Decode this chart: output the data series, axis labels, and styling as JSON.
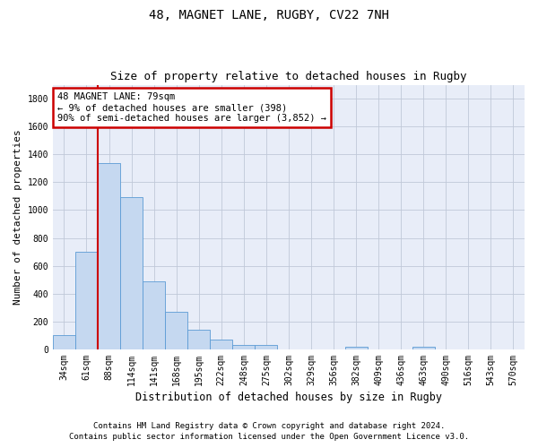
{
  "title": "48, MAGNET LANE, RUGBY, CV22 7NH",
  "subtitle": "Size of property relative to detached houses in Rugby",
  "xlabel": "Distribution of detached houses by size in Rugby",
  "ylabel": "Number of detached properties",
  "categories": [
    "34sqm",
    "61sqm",
    "88sqm",
    "114sqm",
    "141sqm",
    "168sqm",
    "195sqm",
    "222sqm",
    "248sqm",
    "275sqm",
    "302sqm",
    "329sqm",
    "356sqm",
    "382sqm",
    "409sqm",
    "436sqm",
    "463sqm",
    "490sqm",
    "516sqm",
    "543sqm",
    "570sqm"
  ],
  "values": [
    100,
    700,
    1340,
    1095,
    490,
    270,
    140,
    70,
    35,
    35,
    0,
    0,
    0,
    20,
    0,
    0,
    20,
    0,
    0,
    0,
    0
  ],
  "bar_color": "#c5d8f0",
  "bar_edge_color": "#5b9bd5",
  "annotation_text": "48 MAGNET LANE: 79sqm\n← 9% of detached houses are smaller (398)\n90% of semi-detached houses are larger (3,852) →",
  "annotation_box_color": "#ffffff",
  "annotation_box_edge_color": "#cc0000",
  "vline_color": "#cc0000",
  "vline_x": 1.5,
  "ylim": [
    0,
    1900
  ],
  "yticks": [
    0,
    200,
    400,
    600,
    800,
    1000,
    1200,
    1400,
    1600,
    1800
  ],
  "footer_line1": "Contains HM Land Registry data © Crown copyright and database right 2024.",
  "footer_line2": "Contains public sector information licensed under the Open Government Licence v3.0.",
  "bg_color": "#ffffff",
  "plot_bg_color": "#e8edf8",
  "grid_color": "#c0c8d8",
  "title_fontsize": 10,
  "subtitle_fontsize": 9,
  "axis_label_fontsize": 8,
  "tick_fontsize": 7,
  "annotation_fontsize": 7.5,
  "footer_fontsize": 6.5
}
